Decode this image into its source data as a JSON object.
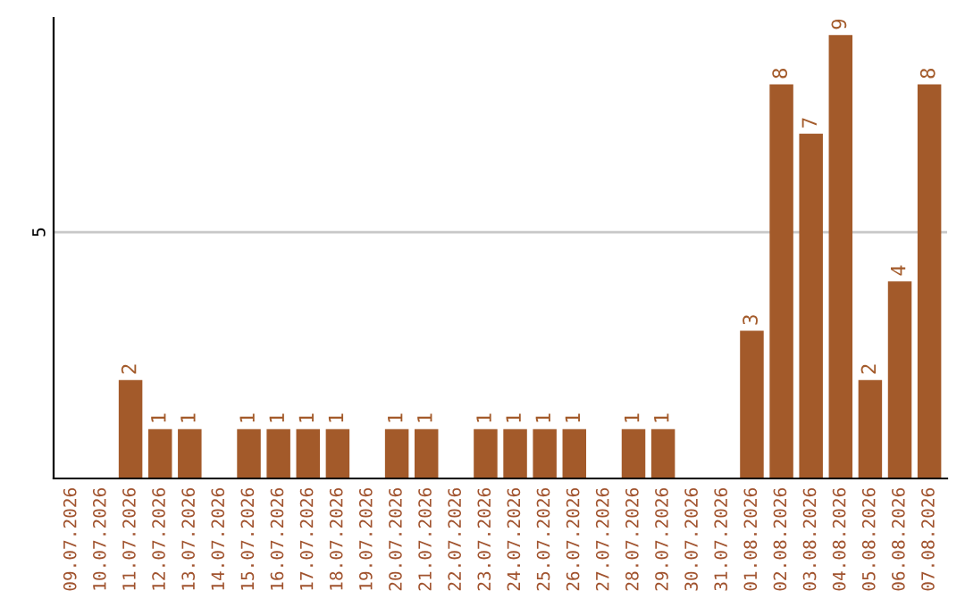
{
  "chart_data": {
    "type": "bar",
    "categories": [
      "09.07.2026",
      "10.07.2026",
      "11.07.2026",
      "12.07.2026",
      "13.07.2026",
      "14.07.2026",
      "15.07.2026",
      "16.07.2026",
      "17.07.2026",
      "18.07.2026",
      "19.07.2026",
      "20.07.2026",
      "21.07.2026",
      "22.07.2026",
      "23.07.2026",
      "24.07.2026",
      "25.07.2026",
      "26.07.2026",
      "27.07.2026",
      "28.07.2026",
      "29.07.2026",
      "30.07.2026",
      "31.07.2026",
      "01.08.2026",
      "02.08.2026",
      "03.08.2026",
      "04.08.2026",
      "05.08.2026",
      "06.08.2026",
      "07.08.2026"
    ],
    "values": [
      0,
      0,
      2,
      1,
      1,
      0,
      1,
      1,
      1,
      1,
      0,
      1,
      1,
      0,
      1,
      1,
      1,
      1,
      0,
      1,
      1,
      0,
      0,
      3,
      8,
      7,
      9,
      2,
      4,
      8
    ],
    "value_labels": [
      null,
      null,
      "2",
      "1",
      "1",
      null,
      "1",
      "1",
      "1",
      "1",
      null,
      "1",
      "1",
      null,
      "1",
      "1",
      "1",
      "1",
      null,
      "1",
      "1",
      null,
      null,
      "3",
      "8",
      "7",
      "9",
      "2",
      "4",
      "8"
    ],
    "color": "#a35a2a",
    "ylim": [
      0,
      9.35
    ],
    "yticks": [
      5
    ],
    "grid": "y",
    "legend": false
  }
}
